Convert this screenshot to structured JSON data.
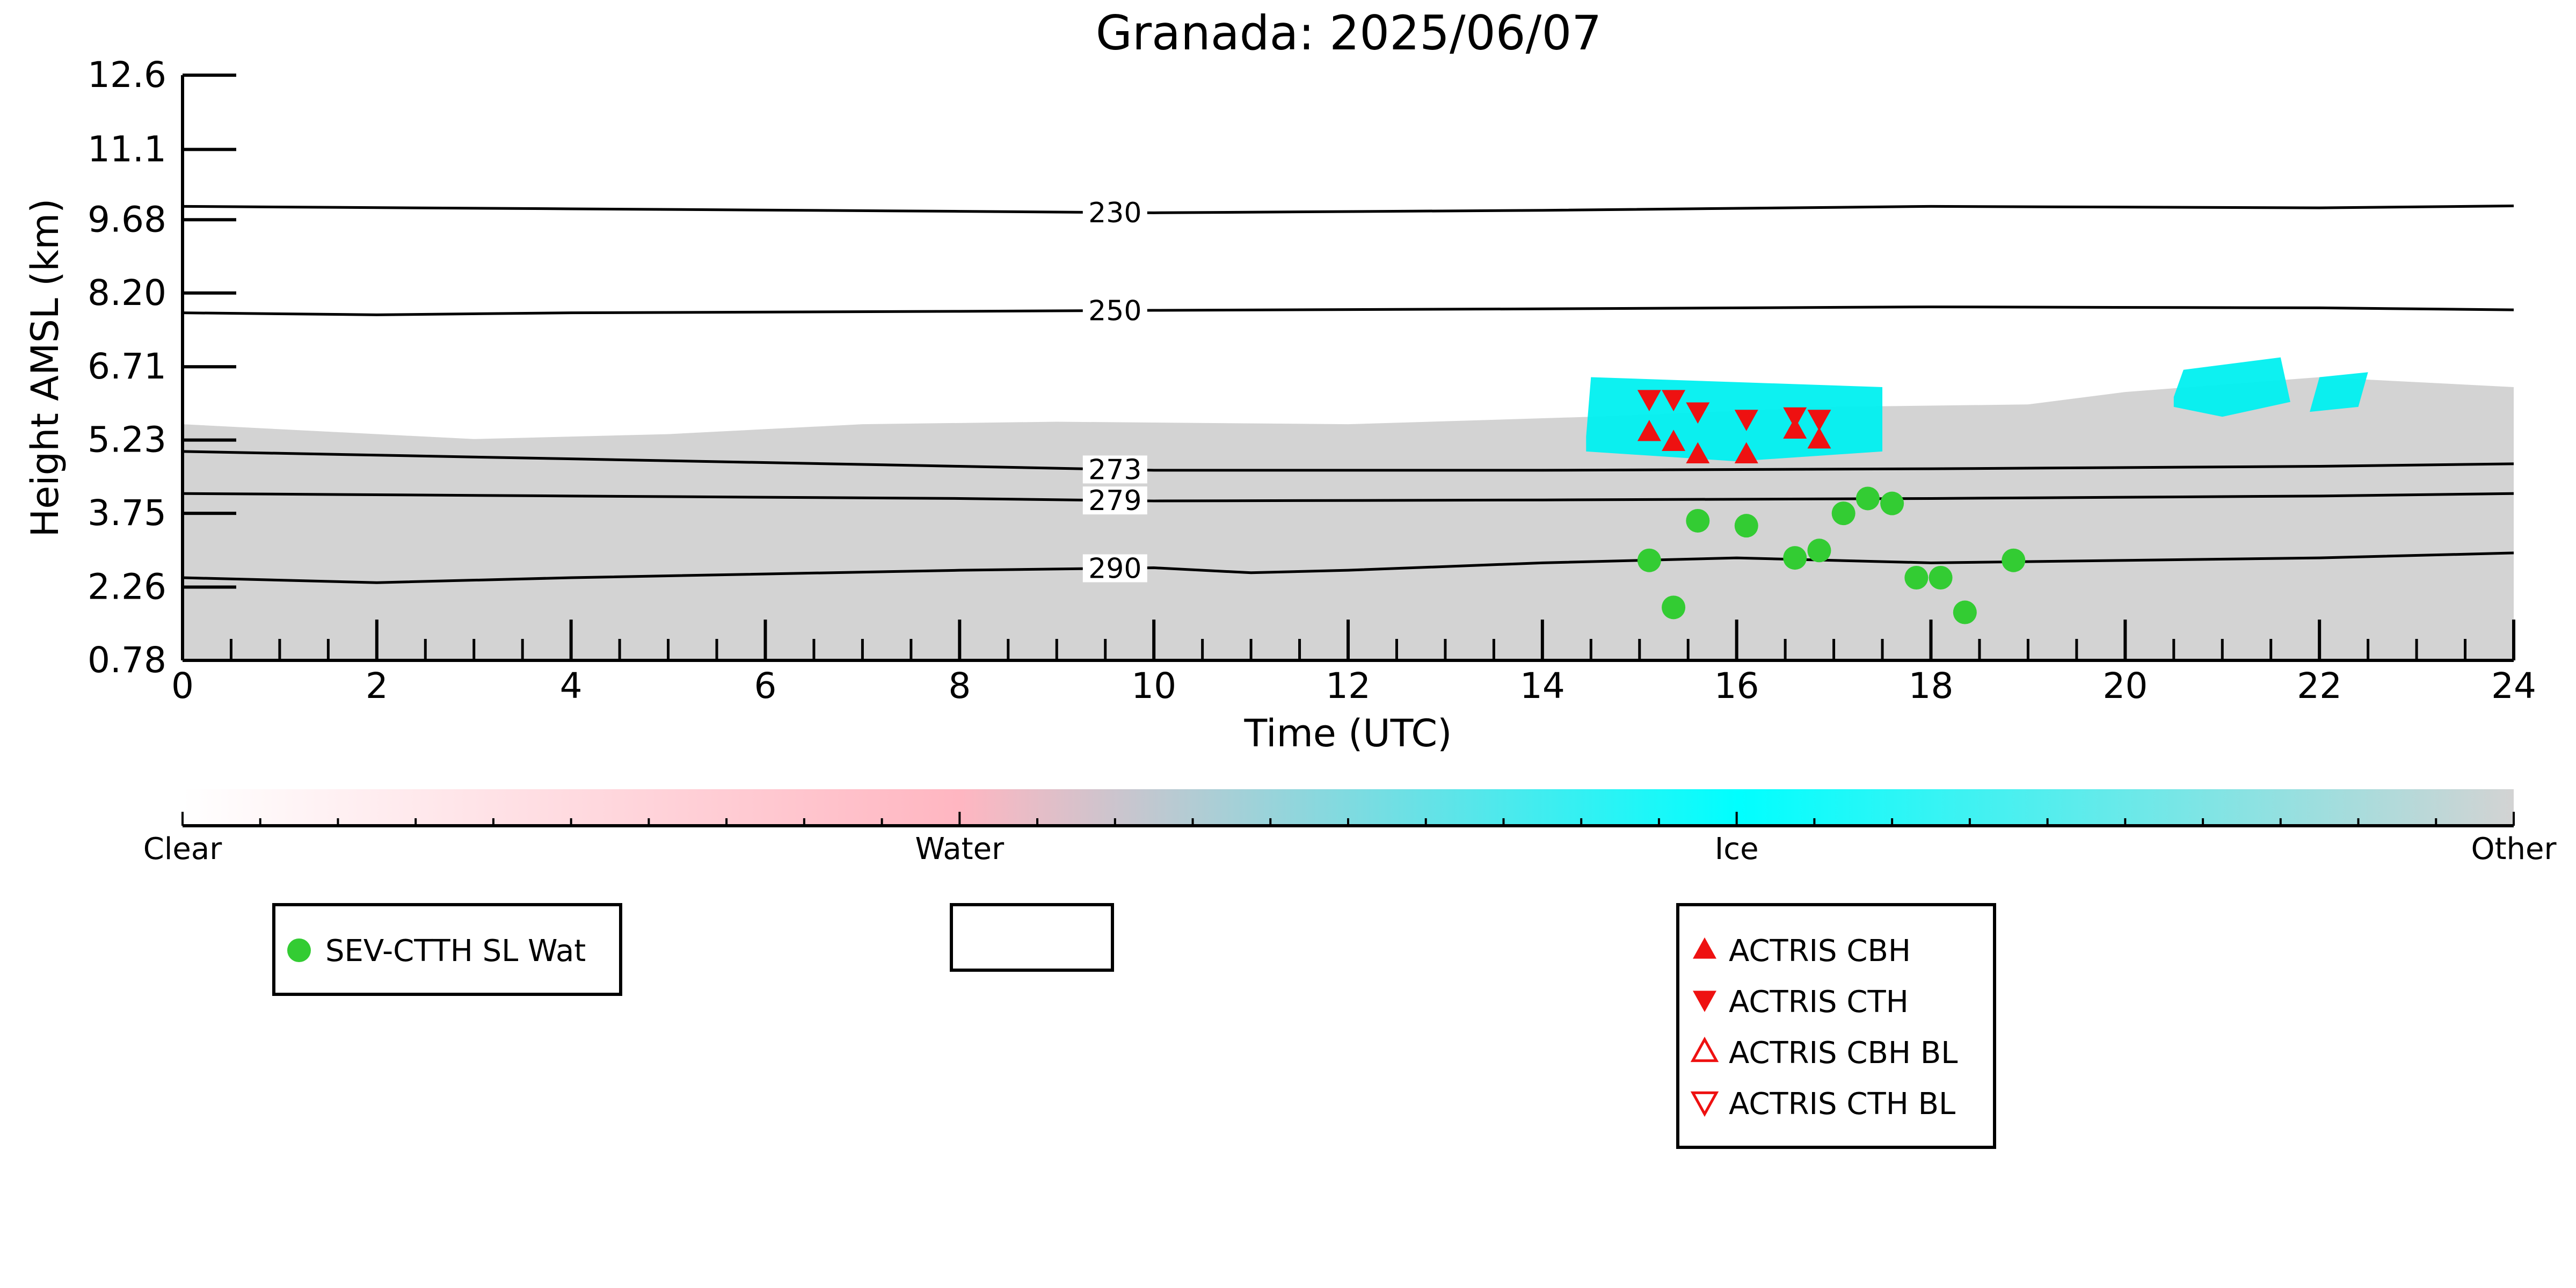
{
  "chart_data": {
    "type": "scatter",
    "title": "Granada: 2025/06/07",
    "xlabel": "Time (UTC)",
    "ylabel": "Height AMSL (km)",
    "xlim": [
      0,
      24
    ],
    "ylim": [
      0.78,
      12.6
    ],
    "x_ticks": [
      "0",
      "2",
      "4",
      "6",
      "8",
      "10",
      "12",
      "14",
      "16",
      "18",
      "20",
      "22",
      "24"
    ],
    "y_ticks": [
      "0.78",
      "2.26",
      "3.75",
      "5.23",
      "6.71",
      "8.20",
      "9.68",
      "11.1",
      "12.6"
    ],
    "y_tick_values": [
      0.78,
      2.26,
      3.75,
      5.23,
      6.71,
      8.2,
      9.68,
      11.1,
      12.6
    ],
    "grid": false,
    "colorbar": {
      "labels": [
        "Clear",
        "Water",
        "Ice",
        "Other"
      ],
      "colors": {
        "clear": "#ffffff",
        "water": "#ffb6c1",
        "ice": "#00ffff",
        "other": "#d3d3d3"
      }
    },
    "colors": {
      "sev": "#33cc33",
      "actris": "#ee1111",
      "contour": "#000000",
      "background_cloud": "#d3d3d3",
      "ice_cloud": "#00f0f0"
    },
    "contours": [
      {
        "label": "230",
        "label_x": 9.6,
        "x": [
          0,
          4,
          8,
          10,
          14,
          18,
          22,
          24
        ],
        "y": [
          9.95,
          9.9,
          9.85,
          9.82,
          9.87,
          9.95,
          9.92,
          9.96
        ]
      },
      {
        "label": "250",
        "label_x": 9.6,
        "x": [
          0,
          2,
          4,
          8,
          10,
          14,
          18,
          22,
          24
        ],
        "y": [
          7.8,
          7.76,
          7.8,
          7.83,
          7.85,
          7.88,
          7.92,
          7.9,
          7.86
        ]
      },
      {
        "label": "273",
        "label_x": 9.6,
        "x": [
          0,
          4,
          8,
          10,
          14,
          18,
          22,
          24
        ],
        "y": [
          5.0,
          4.85,
          4.7,
          4.62,
          4.62,
          4.65,
          4.7,
          4.75
        ]
      },
      {
        "label": "279",
        "label_x": 9.6,
        "x": [
          0,
          4,
          8,
          10,
          14,
          18,
          22,
          24
        ],
        "y": [
          4.15,
          4.1,
          4.05,
          4.0,
          4.02,
          4.05,
          4.1,
          4.15
        ]
      },
      {
        "label": "290",
        "label_x": 9.6,
        "x": [
          0,
          2,
          4,
          8,
          10,
          11,
          12,
          14,
          16,
          18,
          20,
          22,
          24
        ],
        "y": [
          2.45,
          2.35,
          2.45,
          2.6,
          2.65,
          2.55,
          2.6,
          2.75,
          2.85,
          2.75,
          2.8,
          2.85,
          2.95
        ]
      }
    ],
    "series": [
      {
        "name": "SEV-CTTH SL Wat",
        "marker": "circle",
        "x": [
          15.1,
          15.35,
          15.6,
          16.1,
          16.6,
          16.85,
          17.1,
          17.35,
          17.6,
          17.85,
          18.1,
          18.35,
          18.85
        ],
        "y": [
          2.8,
          1.85,
          3.6,
          3.5,
          2.85,
          3.0,
          3.75,
          4.05,
          3.95,
          2.45,
          2.45,
          1.75,
          2.8
        ]
      },
      {
        "name": "ACTRIS CBH",
        "marker": "triangle-up",
        "x": [
          15.1,
          15.35,
          15.6,
          16.1,
          16.6,
          16.85
        ],
        "y": [
          5.4,
          5.2,
          4.95,
          4.95,
          5.45,
          5.25
        ]
      },
      {
        "name": "ACTRIS CTH",
        "marker": "triangle-down",
        "x": [
          15.1,
          15.35,
          15.6,
          16.1,
          16.6,
          16.85
        ],
        "y": [
          6.05,
          6.05,
          5.8,
          5.65,
          5.7,
          5.65
        ]
      },
      {
        "name": "ACTRIS CBH BL",
        "marker": "triangle-up-open",
        "x": [],
        "y": []
      },
      {
        "name": "ACTRIS CTH BL",
        "marker": "triangle-down-open",
        "x": [],
        "y": []
      }
    ],
    "regions": {
      "other_cloud": [
        [
          0,
          0.78
        ],
        [
          0,
          5.55
        ],
        [
          1.5,
          5.4
        ],
        [
          3,
          5.25
        ],
        [
          5,
          5.35
        ],
        [
          7,
          5.55
        ],
        [
          9,
          5.6
        ],
        [
          12,
          5.55
        ],
        [
          14.5,
          5.7
        ],
        [
          17,
          5.9
        ],
        [
          19,
          5.95
        ],
        [
          20,
          6.2
        ],
        [
          22,
          6.5
        ],
        [
          24,
          6.3
        ],
        [
          24,
          0.78
        ]
      ],
      "ice_cloud_1": [
        [
          14.45,
          5.3
        ],
        [
          14.5,
          6.5
        ],
        [
          16,
          6.4
        ],
        [
          17.5,
          6.3
        ],
        [
          17.5,
          5.0
        ],
        [
          16,
          4.8
        ],
        [
          14.45,
          5.0
        ]
      ],
      "ice_cloud_2": [
        [
          20.5,
          6.1
        ],
        [
          20.6,
          6.65
        ],
        [
          21.6,
          6.9
        ],
        [
          21.7,
          6.0
        ],
        [
          21,
          5.7
        ],
        [
          20.5,
          5.9
        ]
      ],
      "ice_cloud_3": [
        [
          21.9,
          5.8
        ],
        [
          22,
          6.5
        ],
        [
          22.5,
          6.6
        ],
        [
          22.4,
          5.9
        ]
      ]
    },
    "legends": [
      {
        "entries": [
          "SEV-CTTH SL Wat"
        ],
        "placement": "below-left"
      },
      {
        "entries": [],
        "placement": "below-center"
      },
      {
        "entries": [
          "ACTRIS CBH",
          "ACTRIS CTH",
          "ACTRIS CBH BL",
          "ACTRIS CTH BL"
        ],
        "placement": "below-right"
      }
    ]
  }
}
